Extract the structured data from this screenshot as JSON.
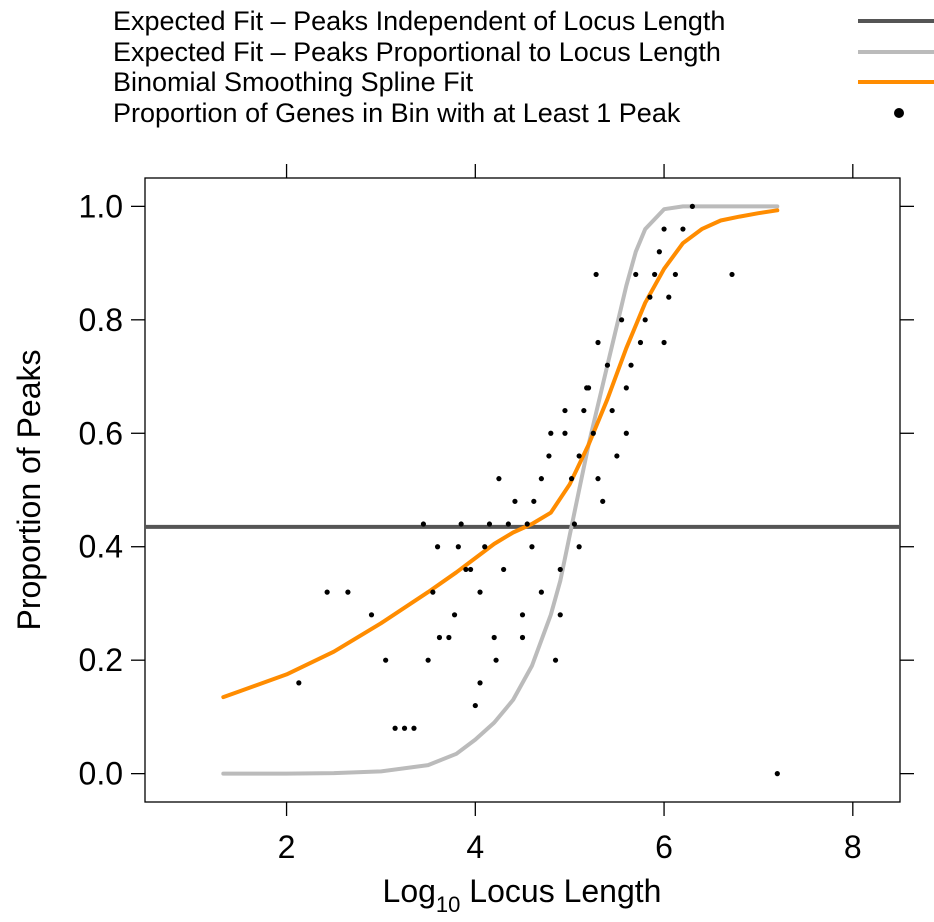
{
  "chart_data": {
    "type": "scatter",
    "xlabel": {
      "main": "Log",
      "sub": "10",
      "rest": " Locus Length"
    },
    "ylabel": "Proportion of Peaks",
    "xlim": [
      0.5,
      8.5
    ],
    "ylim": [
      -0.05,
      1.05
    ],
    "xticks": [
      2,
      4,
      6,
      8
    ],
    "yticks": [
      0.0,
      0.2,
      0.4,
      0.6,
      0.8,
      1.0
    ],
    "ytick_labels": [
      "0.0",
      "0.2",
      "0.4",
      "0.6",
      "0.8",
      "1.0"
    ],
    "legend": [
      {
        "label": "Expected Fit – Peaks Independent of Locus Length",
        "kind": "line",
        "color": "#555555"
      },
      {
        "label": "Expected Fit – Peaks Proportional to Locus Length",
        "kind": "line",
        "color": "#bbbbbb"
      },
      {
        "label": "Binomial Smoothing Spline Fit",
        "kind": "line",
        "color": "#ff8c00"
      },
      {
        "label": "Proportion of Genes in Bin with at Least 1 Peak",
        "kind": "point",
        "color": "#000000"
      }
    ],
    "series": [
      {
        "name": "Expected Fit – Peaks Independent of Locus Length",
        "kind": "hline",
        "color": "#555555",
        "y": 0.435
      },
      {
        "name": "Expected Fit – Peaks Proportional to Locus Length",
        "kind": "line",
        "color": "#bbbbbb",
        "x": [
          1.33,
          2.0,
          2.5,
          3.0,
          3.5,
          3.8,
          4.0,
          4.2,
          4.4,
          4.6,
          4.8,
          4.9,
          5.0,
          5.1,
          5.2,
          5.3,
          5.4,
          5.5,
          5.6,
          5.7,
          5.8,
          6.0,
          6.2,
          7.2
        ],
        "y": [
          0.0,
          0.0,
          0.001,
          0.004,
          0.015,
          0.035,
          0.06,
          0.09,
          0.13,
          0.19,
          0.28,
          0.34,
          0.42,
          0.5,
          0.58,
          0.65,
          0.72,
          0.79,
          0.86,
          0.92,
          0.96,
          0.995,
          1.0,
          1.0
        ]
      },
      {
        "name": "Binomial Smoothing Spline Fit",
        "kind": "line",
        "color": "#ff8c00",
        "x": [
          1.33,
          1.5,
          2.0,
          2.5,
          3.0,
          3.5,
          3.8,
          4.0,
          4.2,
          4.4,
          4.6,
          4.8,
          5.0,
          5.2,
          5.4,
          5.6,
          5.8,
          6.0,
          6.2,
          6.4,
          6.6,
          6.8,
          7.0,
          7.2
        ],
        "y": [
          0.135,
          0.145,
          0.175,
          0.215,
          0.265,
          0.32,
          0.355,
          0.38,
          0.405,
          0.425,
          0.44,
          0.46,
          0.51,
          0.58,
          0.66,
          0.75,
          0.83,
          0.89,
          0.935,
          0.96,
          0.975,
          0.982,
          0.988,
          0.993
        ]
      },
      {
        "name": "Proportion of Genes in Bin with at Least 1 Peak",
        "kind": "points",
        "color": "#000000",
        "x": [
          2.13,
          2.43,
          2.65,
          2.9,
          3.05,
          3.15,
          3.25,
          3.35,
          3.5,
          3.55,
          3.62,
          3.72,
          3.78,
          3.82,
          3.9,
          3.95,
          4.0,
          4.05,
          4.1,
          4.15,
          4.22,
          4.3,
          4.35,
          4.42,
          4.5,
          4.55,
          4.62,
          4.7,
          4.78,
          4.85,
          4.9,
          4.95,
          5.02,
          5.1,
          5.15,
          5.2,
          5.25,
          5.3,
          5.35,
          5.4,
          5.45,
          5.5,
          5.55,
          5.6,
          5.65,
          5.7,
          5.75,
          5.8,
          5.85,
          5.9,
          5.95,
          6.0,
          6.05,
          6.12,
          6.2,
          6.3,
          6.72,
          7.2,
          3.45,
          3.6,
          3.85,
          4.25,
          4.6,
          4.8,
          5.05,
          5.18,
          5.28,
          4.7,
          4.9,
          5.1,
          4.95,
          5.3,
          5.6,
          6.0,
          4.5,
          4.2,
          4.05
        ],
        "y": [
          0.16,
          0.32,
          0.32,
          0.28,
          0.2,
          0.08,
          0.08,
          0.08,
          0.2,
          0.32,
          0.24,
          0.24,
          0.28,
          0.4,
          0.36,
          0.36,
          0.12,
          0.32,
          0.4,
          0.44,
          0.2,
          0.36,
          0.44,
          0.48,
          0.24,
          0.44,
          0.48,
          0.52,
          0.56,
          0.2,
          0.28,
          0.6,
          0.52,
          0.56,
          0.64,
          0.68,
          0.6,
          0.76,
          0.48,
          0.72,
          0.64,
          0.56,
          0.8,
          0.68,
          0.72,
          0.88,
          0.76,
          0.8,
          0.84,
          0.88,
          0.92,
          0.96,
          0.84,
          0.88,
          0.96,
          1.0,
          0.88,
          0.0,
          0.44,
          0.4,
          0.44,
          0.52,
          0.4,
          0.6,
          0.44,
          0.68,
          0.88,
          0.32,
          0.36,
          0.4,
          0.64,
          0.52,
          0.6,
          0.76,
          0.28,
          0.24,
          0.16
        ]
      }
    ]
  }
}
